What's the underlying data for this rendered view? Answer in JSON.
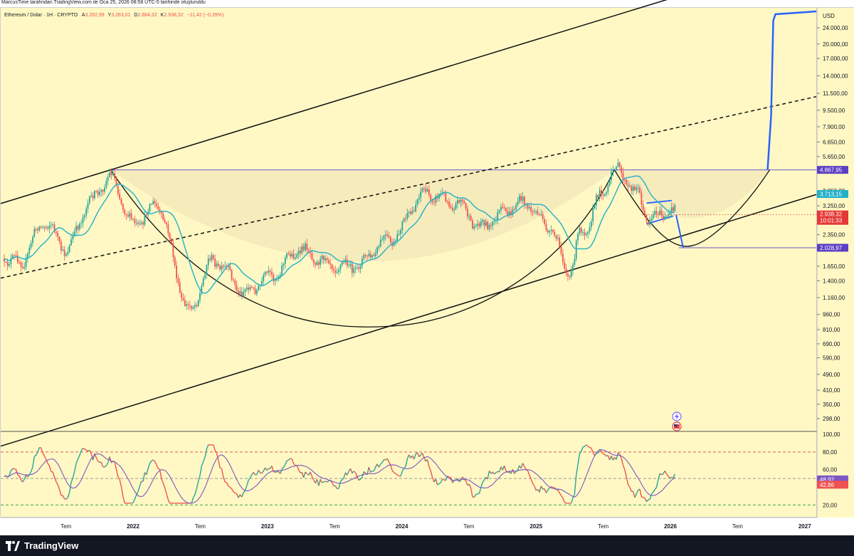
{
  "header": {
    "credit": "MarcusTime tarafından TradingView.com ile Oca 25, 2026 08:58 UTC-5 tarihinde oluşturuldu"
  },
  "legend": {
    "symbol": "Ethereum / Dolar · 1H · CRYPTO",
    "open_label": "A",
    "open": "3.282,99",
    "high_label": "Y",
    "high": "3.283,01",
    "low_label": "D",
    "low": "2.864,32",
    "close_label": "K",
    "close": "2.938,32",
    "change": "−11,42 (−0,39%)"
  },
  "colors": {
    "background": "#fff8c4",
    "up": "#26a69a",
    "down": "#ef5350",
    "ma": "#22b1c9",
    "rsi": "#7e57c2",
    "drawing_blue": "#2962ff",
    "level_line": "#6a5acd"
  },
  "price_axis": {
    "currency": "USD",
    "ticks": [
      "24.000,00",
      "20.000,00",
      "17.000,00",
      "14.000,00",
      "11.500,00",
      "9.500,00",
      "7.900,00",
      "6.650,00",
      "5.650,00",
      "3.850,00",
      "3.250,00",
      "2.350,00",
      "1.650,00",
      "1.400,00",
      "1.160,00",
      "960,00",
      "810,00",
      "690,00",
      "590,00",
      "490,00",
      "410,00",
      "350,00",
      "298,00"
    ]
  },
  "price_tags": {
    "resistance": "4.867,95",
    "ma_value": "3.713,15",
    "last_price": "2.938,32",
    "countdown": "10:01:33",
    "target_low": "2.028,97"
  },
  "rsi_axis": {
    "ticks": [
      "100,00",
      "80,00",
      "60,00",
      "20,00"
    ],
    "ma_value": "48,92",
    "rsi_value": "42,86"
  },
  "time_axis": {
    "labels": [
      "Tem",
      "2022",
      "Tem",
      "2023",
      "Tem",
      "2024",
      "Tem",
      "2025",
      "Tem",
      "2026",
      "Tem",
      "2027"
    ]
  },
  "footer": {
    "brand": "TradingView"
  },
  "chart_data": [
    {
      "type": "candlestick",
      "title": "Ethereum / Dolar · 1H · CRYPTO",
      "x_range": [
        "2021-03",
        "2027-01"
      ],
      "y_scale": "log",
      "ylim": [
        260,
        28000
      ],
      "ohlc_last": {
        "open": 3282.99,
        "high": 3283.01,
        "low": 2864.32,
        "close": 2938.32,
        "change": -11.42,
        "change_pct": -0.39
      },
      "key_points": [
        {
          "date": "2021-03",
          "close": 1800
        },
        {
          "date": "2021-05",
          "close": 2600
        },
        {
          "date": "2021-07",
          "close": 2000
        },
        {
          "date": "2021-09",
          "close": 3400
        },
        {
          "date": "2021-11",
          "close": 4300
        },
        {
          "date": "2022-01",
          "close": 2700
        },
        {
          "date": "2022-03",
          "close": 3300
        },
        {
          "date": "2022-06",
          "close": 1000
        },
        {
          "date": "2022-08",
          "close": 1800
        },
        {
          "date": "2022-11",
          "close": 1200
        },
        {
          "date": "2023-01",
          "close": 1500
        },
        {
          "date": "2023-04",
          "close": 1900
        },
        {
          "date": "2023-06",
          "close": 1800
        },
        {
          "date": "2023-09",
          "close": 1600
        },
        {
          "date": "2023-12",
          "close": 2300
        },
        {
          "date": "2024-03",
          "close": 3600
        },
        {
          "date": "2024-06",
          "close": 3500
        },
        {
          "date": "2024-08",
          "close": 2500
        },
        {
          "date": "2024-12",
          "close": 3500
        },
        {
          "date": "2025-02",
          "close": 2500
        },
        {
          "date": "2025-04",
          "close": 1550
        },
        {
          "date": "2025-05",
          "close": 2500
        },
        {
          "date": "2025-07",
          "close": 3700
        },
        {
          "date": "2025-08",
          "close": 4700
        },
        {
          "date": "2025-10",
          "close": 3900
        },
        {
          "date": "2025-11",
          "close": 2950
        },
        {
          "date": "2026-01",
          "close": 2938
        }
      ],
      "moving_average_last": 3713.15,
      "levels": [
        {
          "label": "resistance",
          "value": 4867.95
        },
        {
          "label": "target_low",
          "value": 2028.97
        }
      ],
      "projection": [
        {
          "date": "2026-01",
          "value": 2938
        },
        {
          "date": "2026-02",
          "value": 2029
        },
        {
          "date": "2026-09",
          "value": 4868
        },
        {
          "date": "2026-10",
          "value": 28000
        }
      ]
    },
    {
      "type": "line",
      "title": "RSI",
      "ylim": [
        0,
        100
      ],
      "reference_lines": [
        80,
        50,
        20
      ],
      "series": [
        {
          "name": "RSI",
          "last": 42.86
        },
        {
          "name": "RSI MA",
          "last": 48.92
        }
      ]
    }
  ]
}
